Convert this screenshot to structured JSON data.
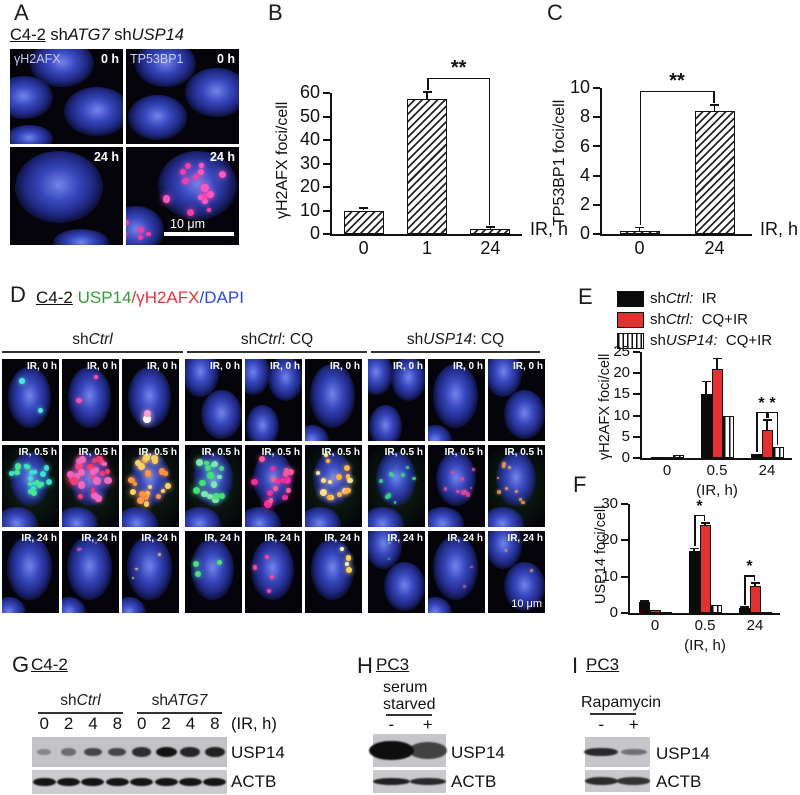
{
  "colors": {
    "accent_red": "#e23230",
    "channel_green": "#2f9e35",
    "channel_red": "#e03838",
    "channel_blue": "#2b48d8"
  },
  "panels": {
    "A": {
      "label": "A",
      "title_segments": [
        {
          "t": "C4-2",
          "u": 1
        },
        {
          "t": " sh"
        },
        {
          "t": "ATG7",
          "i": 1
        },
        {
          "t": " sh"
        },
        {
          "t": "USP14",
          "i": 1
        }
      ],
      "cells": [
        {
          "marker": "γH2AFX",
          "time": "0 h"
        },
        {
          "marker": "TP53BP1",
          "time": "0 h"
        },
        {
          "time": "24 h"
        },
        {
          "time": "24 h",
          "scale": "10 μm"
        }
      ]
    },
    "B": {
      "label": "B"
    },
    "C": {
      "label": "C"
    },
    "D": {
      "label": "D",
      "title_segments": [
        {
          "t": "C4-2",
          "u": 1
        },
        {
          "t": " "
        },
        {
          "t": "USP14",
          "c": "#2f9e35"
        },
        {
          "t": "/",
          "c": "#e03838"
        },
        {
          "t": "γH2AFX",
          "c": "#e03838"
        },
        {
          "t": "/",
          "c": "#2b48d8"
        },
        {
          "t": "DAPI",
          "c": "#2b48d8"
        }
      ],
      "groups": [
        {
          "segments": [
            {
              "t": "sh"
            },
            {
              "t": "Ctrl",
              "i": 1
            }
          ]
        },
        {
          "segments": [
            {
              "t": "sh"
            },
            {
              "t": "Ctrl",
              "i": 1
            },
            {
              "t": ": CQ"
            }
          ]
        },
        {
          "segments": [
            {
              "t": "sh"
            },
            {
              "t": "USP14",
              "i": 1
            },
            {
              "t": ": CQ"
            }
          ]
        }
      ],
      "row_labels": [
        "IR, 0 h",
        "IR, 0.5 h",
        "IR, 24 h"
      ],
      "scale": "10 μm"
    },
    "E": {
      "label": "E",
      "legend": [
        {
          "pre": "sh",
          "gene": "Ctrl:",
          "cond": "  IR",
          "style": "black"
        },
        {
          "pre": "sh",
          "gene": "Ctrl:",
          "cond": "  CQ+IR",
          "style": "red"
        },
        {
          "pre": "sh",
          "gene": "USP14:",
          "cond": "  CQ+IR",
          "style": "vstripe"
        }
      ]
    },
    "F": {
      "label": "F"
    },
    "G": {
      "label": "G",
      "title": "C4-2",
      "groups": [
        {
          "segments": [
            {
              "t": "sh"
            },
            {
              "t": "Ctrl",
              "i": 1
            }
          ]
        },
        {
          "segments": [
            {
              "t": "sh"
            },
            {
              "t": "ATG7",
              "i": 1
            }
          ]
        }
      ],
      "lanes": [
        "0",
        "2",
        "4",
        "8",
        "0",
        "2",
        "4",
        "8"
      ],
      "x_label": "(IR, h)",
      "blots": [
        {
          "name": "USP14",
          "intensities": [
            0.18,
            0.35,
            0.62,
            0.62,
            0.78,
            0.96,
            0.84,
            0.86
          ]
        },
        {
          "name": "ACTB",
          "intensities": [
            0.95,
            0.95,
            0.95,
            0.95,
            0.95,
            0.95,
            0.95,
            0.95
          ]
        }
      ]
    },
    "H": {
      "label": "H",
      "title": "PC3",
      "condition_line1": "serum",
      "condition_line2": "starved",
      "lanes": [
        "-",
        "+"
      ],
      "blots": [
        {
          "name": "USP14",
          "intensities": [
            1.0,
            0.65
          ]
        },
        {
          "name": "ACTB",
          "intensities": [
            0.88,
            0.82
          ]
        }
      ]
    },
    "I": {
      "label": "I",
      "title": "PC3",
      "condition": "Rapamycin",
      "lanes": [
        "-",
        "+"
      ],
      "blots": [
        {
          "name": "USP14",
          "intensities": [
            0.82,
            0.35
          ]
        },
        {
          "name": "ACTB",
          "intensities": [
            0.8,
            0.75
          ]
        }
      ]
    }
  },
  "chart_data": [
    {
      "id": "chartB",
      "type": "bar",
      "title": "",
      "ylabel": "γH2AFX foci/cell",
      "xlabel": "IR, h",
      "ylim": [
        0,
        60
      ],
      "yticks": [
        0,
        10,
        20,
        30,
        40,
        50,
        60
      ],
      "categories": [
        "0",
        "1",
        "24"
      ],
      "values": [
        10,
        57.5,
        2
      ],
      "errors": [
        1,
        3,
        1
      ],
      "bar_style": "hatch",
      "significance": [
        {
          "from": 1,
          "to": 2,
          "label": "**"
        }
      ]
    },
    {
      "id": "chartC",
      "type": "bar",
      "title": "",
      "ylabel": "TP53BP1 foci/cell",
      "xlabel": "IR, h",
      "ylim": [
        0,
        10
      ],
      "yticks": [
        0,
        2,
        4,
        6,
        8,
        10
      ],
      "categories": [
        "0",
        "24"
      ],
      "values": [
        0.2,
        8.4
      ],
      "errors": [
        0.25,
        0.45
      ],
      "bar_style": "hatch",
      "significance": [
        {
          "from": 0,
          "to": 1,
          "label": "**"
        }
      ]
    },
    {
      "id": "chartE",
      "type": "bar",
      "title": "",
      "ylabel": "γH2AFX foci/cell",
      "xlabel": "(IR, h)",
      "ylim": [
        0,
        25
      ],
      "yticks": [
        0,
        5,
        10,
        15,
        20,
        25
      ],
      "categories": [
        "0",
        "0.5",
        "24"
      ],
      "series": [
        {
          "name": "shCtrl: IR",
          "style": "black",
          "values": [
            0.3,
            15,
            1
          ],
          "errors": [
            0,
            3,
            0
          ]
        },
        {
          "name": "shCtrl: CQ+IR",
          "style": "red",
          "values": [
            0.3,
            21,
            6.5
          ],
          "errors": [
            0,
            2.5,
            2.5
          ]
        },
        {
          "name": "shUSP14: CQ+IR",
          "style": "vstripe",
          "values": [
            0.6,
            10,
            2.5
          ],
          "errors": [
            0,
            0,
            0
          ]
        }
      ],
      "significance": [
        {
          "group": 2,
          "from": 0,
          "to": 1,
          "label": "*"
        },
        {
          "group": 2,
          "from": 1,
          "to": 2,
          "label": "*"
        }
      ]
    },
    {
      "id": "chartF",
      "type": "bar",
      "title": "",
      "ylabel": "USP14 foci/cell",
      "xlabel": "(IR, h)",
      "ylim": [
        0,
        30
      ],
      "yticks": [
        0,
        10,
        20,
        30
      ],
      "categories": [
        "0",
        "0.5",
        "24"
      ],
      "series": [
        {
          "name": "shCtrl: IR",
          "style": "black",
          "values": [
            3,
            17,
            1.5
          ],
          "errors": [
            0.3,
            0.8,
            0.2
          ]
        },
        {
          "name": "shCtrl: CQ+IR",
          "style": "red",
          "values": [
            0.8,
            24.3,
            7.5
          ],
          "errors": [
            0,
            0.5,
            0.7
          ]
        },
        {
          "name": "shUSP14: CQ+IR",
          "style": "vstripe",
          "values": [
            0.15,
            2.2,
            0.3
          ],
          "errors": [
            0,
            0,
            0
          ]
        }
      ],
      "significance": [
        {
          "group": 1,
          "from": 0,
          "to": 1,
          "label": "*"
        },
        {
          "group": 2,
          "from": 0,
          "to": 1,
          "label": "*"
        }
      ]
    }
  ]
}
